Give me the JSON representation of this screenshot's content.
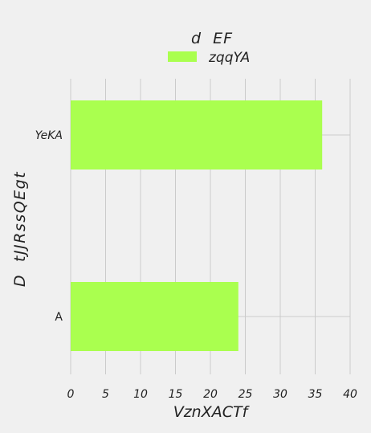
{
  "chart_data": {
    "type": "bar",
    "orientation": "horizontal",
    "title": "",
    "legend_title": "d  EF",
    "legend_placement": "top-center",
    "categories": [
      "YeKA",
      "A"
    ],
    "series": [
      {
        "name": "zqqYA",
        "values": [
          36,
          24
        ]
      }
    ],
    "xlabel": "VznXACTf",
    "ylabel": "D  tJJRssQEgt",
    "xlim": [
      0,
      40
    ],
    "xticks": [
      0,
      5,
      10,
      15,
      20,
      25,
      30,
      35,
      40
    ],
    "grid": true,
    "colors": {
      "background": "#f0f0f0",
      "bar": "#aaff4f",
      "grid": "#cbcbcb",
      "text": "#222222"
    }
  }
}
